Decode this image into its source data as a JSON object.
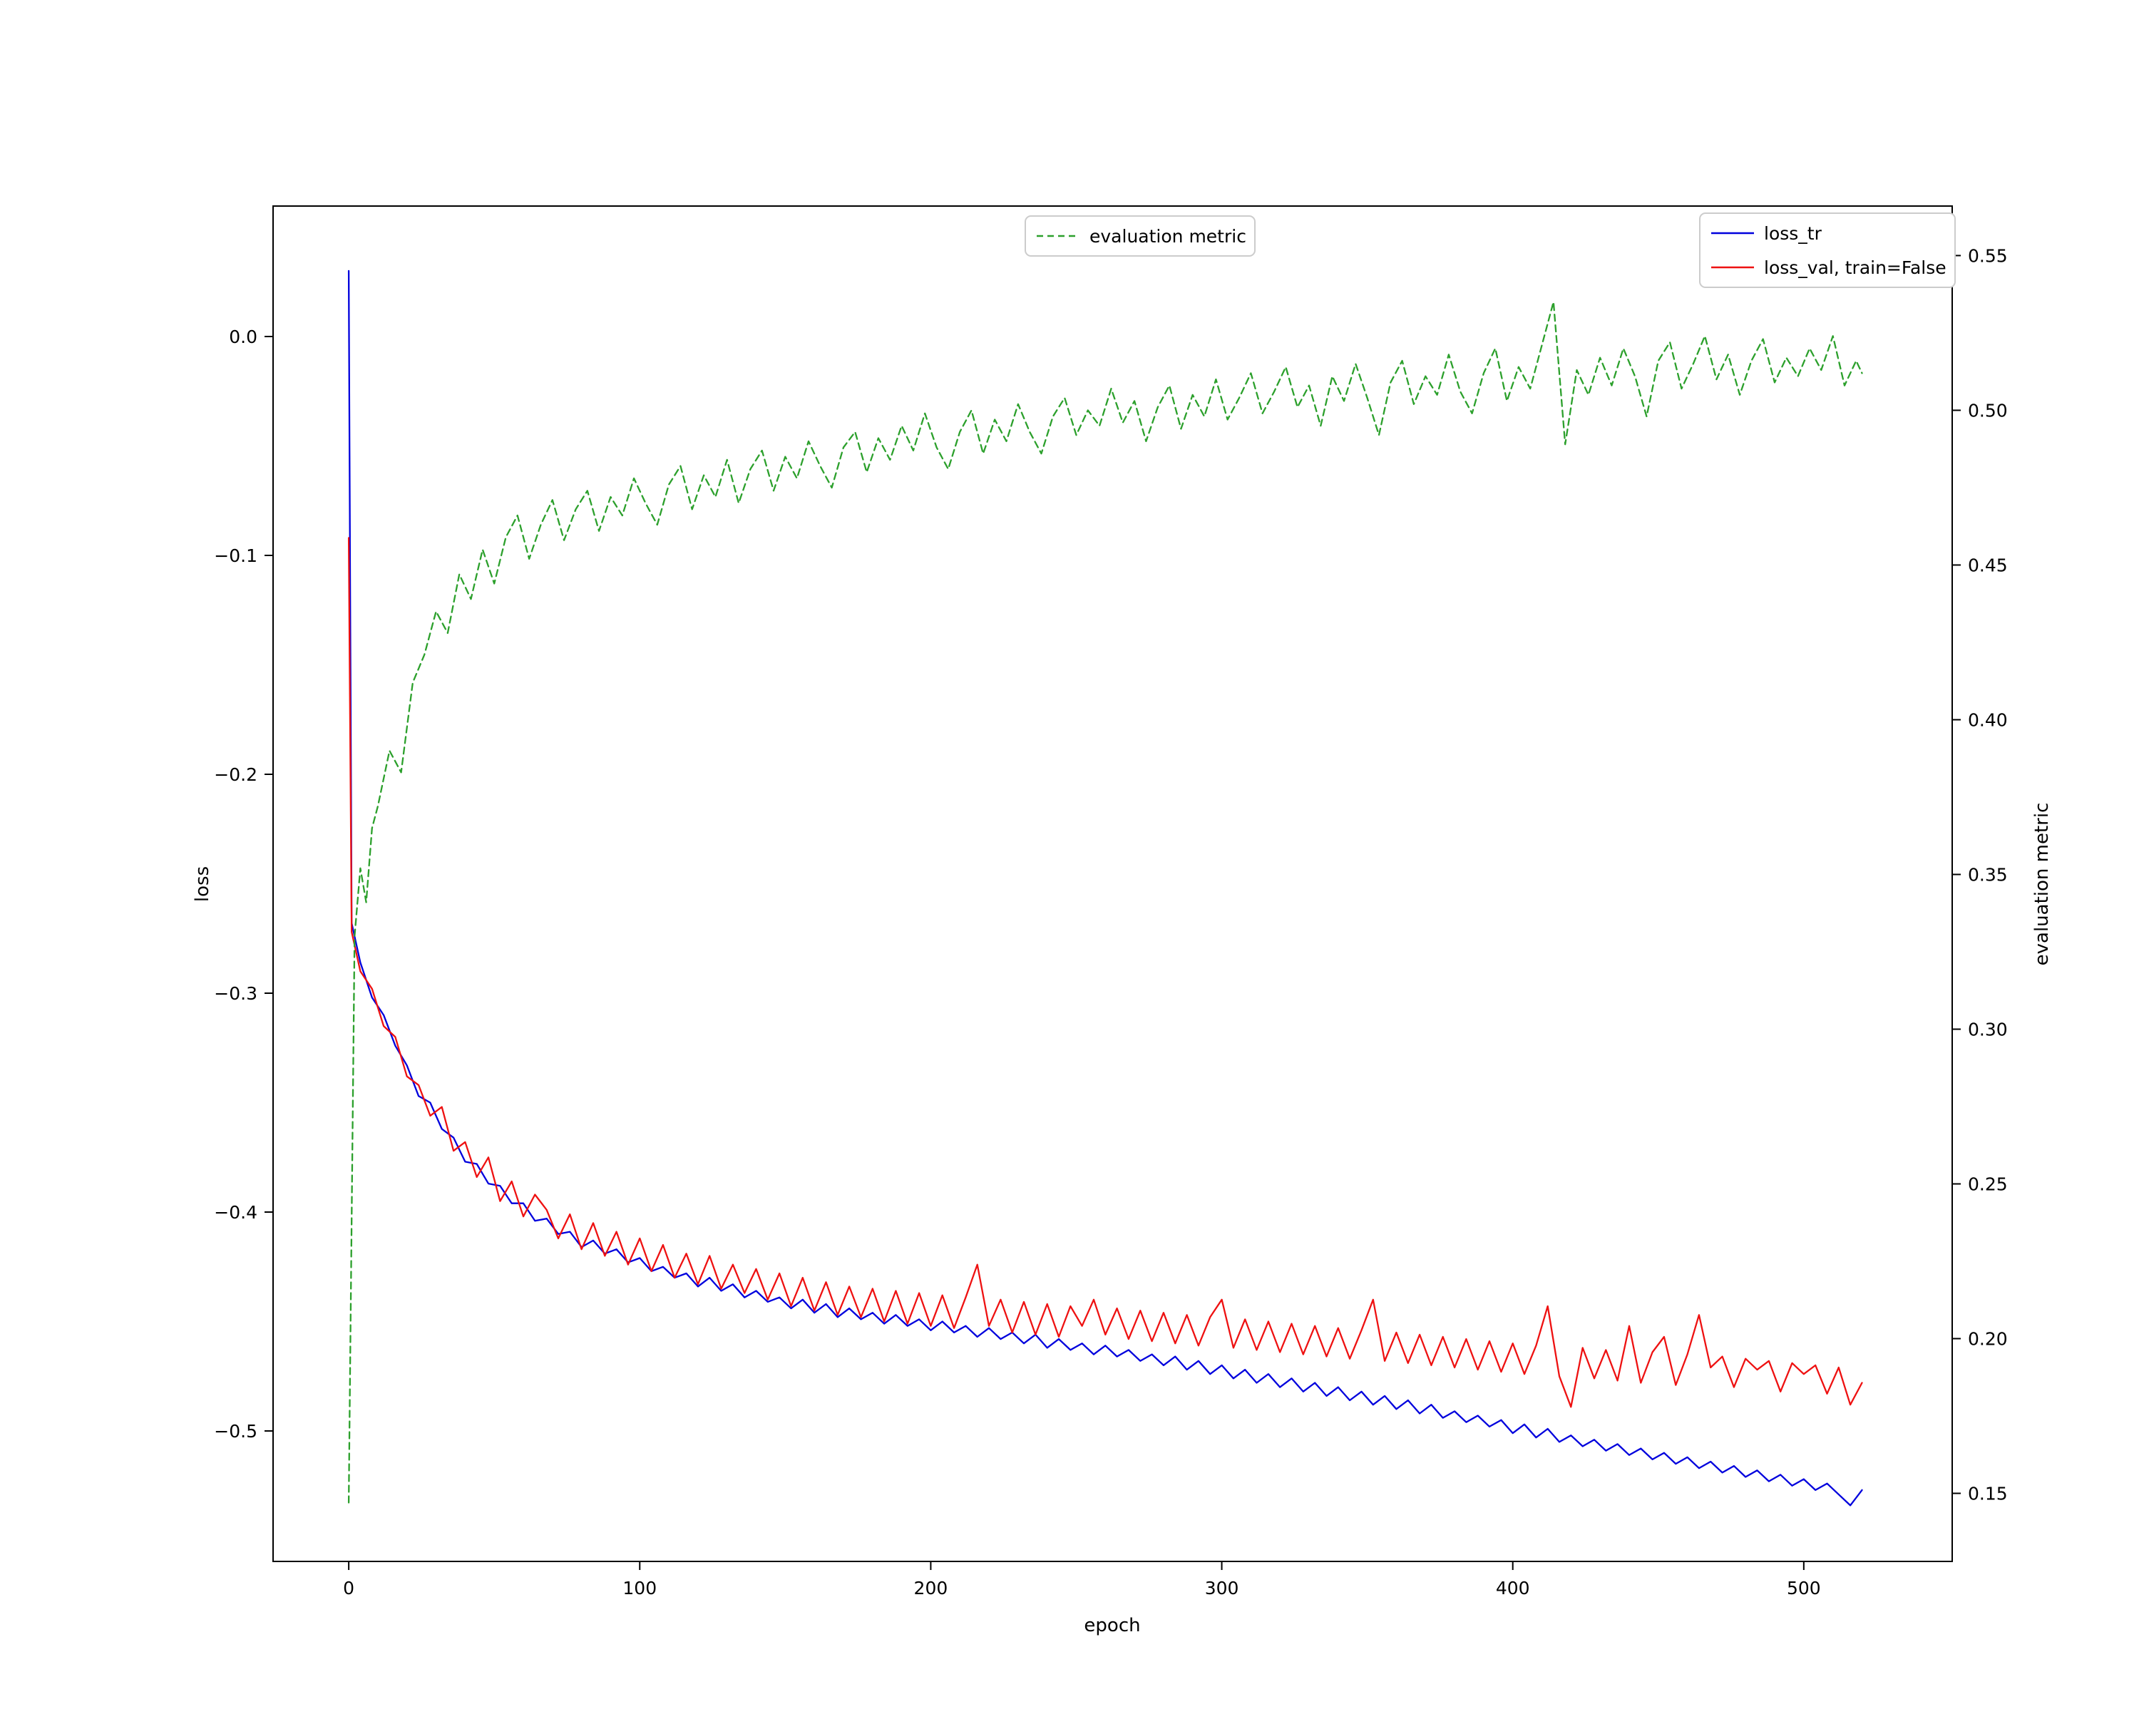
{
  "axes": {
    "x": {
      "label": "epoch",
      "lim": [
        -26,
        551
      ],
      "tick_values": [
        0,
        100,
        200,
        300,
        400,
        500
      ],
      "tick_labels": [
        "0",
        "100",
        "200",
        "300",
        "400",
        "500"
      ]
    },
    "left": {
      "label": "loss",
      "lim": [
        -0.5596,
        0.0596
      ],
      "tick_values": [
        0.0,
        -0.1,
        -0.2,
        -0.3,
        -0.4,
        -0.5
      ],
      "tick_labels": [
        "0.0",
        "−0.1",
        "−0.2",
        "−0.3",
        "−0.4",
        "−0.5"
      ]
    },
    "right": {
      "label": "evaluation metric",
      "lim": [
        0.128,
        0.566
      ],
      "tick_values": [
        0.55,
        0.5,
        0.45,
        0.4,
        0.35,
        0.3,
        0.25,
        0.2,
        0.15
      ],
      "tick_labels": [
        "0.55",
        "0.50",
        "0.45",
        "0.40",
        "0.35",
        "0.30",
        "0.25",
        "0.20",
        "0.15"
      ]
    }
  },
  "colors": {
    "loss_tr": "#0000dd",
    "loss_val": "#ee1111",
    "evaluation_metric": "#2ca02c",
    "spine": "#000000",
    "legend_frame": "#cccccc"
  },
  "chart_data": {
    "type": "line",
    "title": "",
    "xlabel": "epoch",
    "ylabel": "loss",
    "ylabel_right": "evaluation metric",
    "xlim": [
      -26,
      551
    ],
    "ylim_left": [
      -0.5596,
      0.0596
    ],
    "ylim_right": [
      0.128,
      0.566
    ],
    "grid": false,
    "legend_positions": [
      "upper center",
      "upper right"
    ],
    "series": [
      {
        "name": "loss_tr",
        "axis": "left",
        "color": "#0000dd",
        "style": "solid",
        "x": [
          0,
          1,
          4,
          8,
          12,
          16,
          20,
          24,
          28,
          32,
          36,
          40,
          44,
          48,
          52,
          56,
          60,
          64,
          68,
          72,
          76,
          80,
          84,
          88,
          92,
          96,
          100,
          104,
          108,
          112,
          116,
          120,
          124,
          128,
          132,
          136,
          140,
          144,
          148,
          152,
          156,
          160,
          164,
          168,
          172,
          176,
          180,
          184,
          188,
          192,
          196,
          200,
          204,
          208,
          212,
          216,
          220,
          224,
          228,
          232,
          236,
          240,
          244,
          248,
          252,
          256,
          260,
          264,
          268,
          272,
          276,
          280,
          284,
          288,
          292,
          296,
          300,
          304,
          308,
          312,
          316,
          320,
          324,
          328,
          332,
          336,
          340,
          344,
          348,
          352,
          356,
          360,
          364,
          368,
          372,
          376,
          380,
          384,
          388,
          392,
          396,
          400,
          404,
          408,
          412,
          416,
          420,
          424,
          428,
          432,
          436,
          440,
          444,
          448,
          452,
          456,
          460,
          464,
          468,
          472,
          476,
          480,
          484,
          488,
          492,
          496,
          500,
          504,
          508,
          512,
          516,
          520
        ],
        "y": [
          0.03,
          -0.268,
          -0.286,
          -0.302,
          -0.31,
          -0.324,
          -0.333,
          -0.347,
          -0.35,
          -0.362,
          -0.366,
          -0.377,
          -0.378,
          -0.387,
          -0.388,
          -0.396,
          -0.396,
          -0.404,
          -0.403,
          -0.41,
          -0.409,
          -0.416,
          -0.413,
          -0.419,
          -0.417,
          -0.423,
          -0.421,
          -0.427,
          -0.425,
          -0.43,
          -0.428,
          -0.434,
          -0.43,
          -0.436,
          -0.433,
          -0.439,
          -0.436,
          -0.441,
          -0.439,
          -0.444,
          -0.44,
          -0.446,
          -0.442,
          -0.448,
          -0.444,
          -0.449,
          -0.446,
          -0.451,
          -0.447,
          -0.452,
          -0.449,
          -0.454,
          -0.45,
          -0.455,
          -0.452,
          -0.457,
          -0.453,
          -0.458,
          -0.455,
          -0.46,
          -0.456,
          -0.462,
          -0.458,
          -0.463,
          -0.46,
          -0.465,
          -0.461,
          -0.466,
          -0.463,
          -0.468,
          -0.465,
          -0.47,
          -0.466,
          -0.472,
          -0.468,
          -0.474,
          -0.47,
          -0.476,
          -0.472,
          -0.478,
          -0.474,
          -0.48,
          -0.476,
          -0.482,
          -0.478,
          -0.484,
          -0.48,
          -0.486,
          -0.482,
          -0.488,
          -0.484,
          -0.49,
          -0.486,
          -0.492,
          -0.488,
          -0.494,
          -0.491,
          -0.496,
          -0.493,
          -0.498,
          -0.495,
          -0.501,
          -0.497,
          -0.503,
          -0.499,
          -0.505,
          -0.502,
          -0.507,
          -0.504,
          -0.509,
          -0.506,
          -0.511,
          -0.508,
          -0.513,
          -0.51,
          -0.515,
          -0.512,
          -0.517,
          -0.514,
          -0.519,
          -0.516,
          -0.521,
          -0.518,
          -0.523,
          -0.52,
          -0.525,
          -0.522,
          -0.527,
          -0.524,
          -0.529,
          -0.534,
          -0.527
        ]
      },
      {
        "name": "loss_val, train=False",
        "axis": "left",
        "color": "#ee1111",
        "style": "solid",
        "x": [
          0,
          1,
          4,
          8,
          12,
          16,
          20,
          24,
          28,
          32,
          36,
          40,
          44,
          48,
          52,
          56,
          60,
          64,
          68,
          72,
          76,
          80,
          84,
          88,
          92,
          96,
          100,
          104,
          108,
          112,
          116,
          120,
          124,
          128,
          132,
          136,
          140,
          144,
          148,
          152,
          156,
          160,
          164,
          168,
          172,
          176,
          180,
          184,
          188,
          192,
          196,
          200,
          204,
          208,
          212,
          216,
          220,
          224,
          228,
          232,
          236,
          240,
          244,
          248,
          252,
          256,
          260,
          264,
          268,
          272,
          276,
          280,
          284,
          288,
          292,
          296,
          300,
          304,
          308,
          312,
          316,
          320,
          324,
          328,
          332,
          336,
          340,
          344,
          348,
          352,
          356,
          360,
          364,
          368,
          372,
          376,
          380,
          384,
          388,
          392,
          396,
          400,
          404,
          408,
          412,
          416,
          420,
          424,
          428,
          432,
          436,
          440,
          444,
          448,
          452,
          456,
          460,
          464,
          468,
          472,
          476,
          480,
          484,
          488,
          492,
          496,
          500,
          504,
          508,
          512,
          516,
          520
        ],
        "y": [
          -0.092,
          -0.272,
          -0.29,
          -0.298,
          -0.315,
          -0.32,
          -0.338,
          -0.342,
          -0.356,
          -0.352,
          -0.372,
          -0.368,
          -0.384,
          -0.375,
          -0.395,
          -0.386,
          -0.402,
          -0.392,
          -0.399,
          -0.412,
          -0.401,
          -0.417,
          -0.405,
          -0.42,
          -0.409,
          -0.424,
          -0.412,
          -0.427,
          -0.415,
          -0.43,
          -0.419,
          -0.433,
          -0.42,
          -0.435,
          -0.424,
          -0.437,
          -0.426,
          -0.44,
          -0.428,
          -0.443,
          -0.43,
          -0.445,
          -0.432,
          -0.447,
          -0.434,
          -0.448,
          -0.435,
          -0.45,
          -0.436,
          -0.451,
          -0.437,
          -0.452,
          -0.438,
          -0.453,
          -0.439,
          -0.424,
          -0.452,
          -0.44,
          -0.455,
          -0.441,
          -0.456,
          -0.442,
          -0.457,
          -0.443,
          -0.452,
          -0.44,
          -0.456,
          -0.444,
          -0.458,
          -0.445,
          -0.459,
          -0.446,
          -0.46,
          -0.447,
          -0.461,
          -0.448,
          -0.44,
          -0.462,
          -0.449,
          -0.463,
          -0.45,
          -0.464,
          -0.451,
          -0.465,
          -0.452,
          -0.466,
          -0.453,
          -0.467,
          -0.454,
          -0.44,
          -0.468,
          -0.455,
          -0.469,
          -0.456,
          -0.47,
          -0.457,
          -0.471,
          -0.458,
          -0.472,
          -0.459,
          -0.473,
          -0.46,
          -0.474,
          -0.461,
          -0.443,
          -0.475,
          -0.489,
          -0.462,
          -0.476,
          -0.463,
          -0.477,
          -0.452,
          -0.478,
          -0.464,
          -0.457,
          -0.479,
          -0.465,
          -0.447,
          -0.471,
          -0.466,
          -0.48,
          -0.467,
          -0.472,
          -0.468,
          -0.482,
          -0.469,
          -0.474,
          -0.47,
          -0.483,
          -0.471,
          -0.488,
          -0.478
        ]
      },
      {
        "name": "evaluation metric",
        "axis": "right",
        "color": "#2ca02c",
        "style": "dashed",
        "x": [
          0,
          2,
          4,
          6,
          8,
          10,
          14,
          18,
          22,
          26,
          30,
          34,
          38,
          42,
          46,
          50,
          54,
          58,
          62,
          66,
          70,
          74,
          78,
          82,
          86,
          90,
          94,
          98,
          102,
          106,
          110,
          114,
          118,
          122,
          126,
          130,
          134,
          138,
          142,
          146,
          150,
          154,
          158,
          162,
          166,
          170,
          174,
          178,
          182,
          186,
          190,
          194,
          198,
          202,
          206,
          210,
          214,
          218,
          222,
          226,
          230,
          234,
          238,
          242,
          246,
          250,
          254,
          258,
          262,
          266,
          270,
          274,
          278,
          282,
          286,
          290,
          294,
          298,
          302,
          306,
          310,
          314,
          318,
          322,
          326,
          330,
          334,
          338,
          342,
          346,
          350,
          354,
          358,
          362,
          366,
          370,
          374,
          378,
          382,
          386,
          390,
          394,
          398,
          402,
          406,
          410,
          414,
          418,
          422,
          426,
          430,
          434,
          438,
          442,
          446,
          450,
          454,
          458,
          462,
          466,
          470,
          474,
          478,
          482,
          486,
          490,
          494,
          498,
          502,
          506,
          510,
          514,
          518,
          520
        ],
        "y": [
          0.147,
          0.33,
          0.352,
          0.341,
          0.365,
          0.372,
          0.39,
          0.383,
          0.412,
          0.421,
          0.435,
          0.428,
          0.447,
          0.439,
          0.455,
          0.444,
          0.459,
          0.466,
          0.452,
          0.463,
          0.471,
          0.458,
          0.468,
          0.474,
          0.461,
          0.472,
          0.466,
          0.478,
          0.47,
          0.463,
          0.476,
          0.482,
          0.468,
          0.479,
          0.472,
          0.484,
          0.47,
          0.481,
          0.487,
          0.474,
          0.485,
          0.478,
          0.49,
          0.482,
          0.475,
          0.488,
          0.493,
          0.48,
          0.491,
          0.484,
          0.495,
          0.487,
          0.499,
          0.488,
          0.481,
          0.493,
          0.5,
          0.486,
          0.497,
          0.49,
          0.502,
          0.493,
          0.486,
          0.498,
          0.504,
          0.492,
          0.5,
          0.495,
          0.507,
          0.496,
          0.503,
          0.49,
          0.501,
          0.508,
          0.494,
          0.505,
          0.498,
          0.51,
          0.497,
          0.504,
          0.512,
          0.499,
          0.506,
          0.514,
          0.501,
          0.508,
          0.495,
          0.511,
          0.503,
          0.515,
          0.504,
          0.492,
          0.509,
          0.516,
          0.502,
          0.511,
          0.505,
          0.518,
          0.506,
          0.499,
          0.512,
          0.52,
          0.503,
          0.514,
          0.507,
          0.521,
          0.535,
          0.489,
          0.513,
          0.505,
          0.517,
          0.508,
          0.52,
          0.511,
          0.498,
          0.516,
          0.522,
          0.507,
          0.515,
          0.524,
          0.51,
          0.518,
          0.505,
          0.516,
          0.523,
          0.509,
          0.517,
          0.511,
          0.52,
          0.513,
          0.524,
          0.508,
          0.516,
          0.512
        ]
      }
    ]
  }
}
